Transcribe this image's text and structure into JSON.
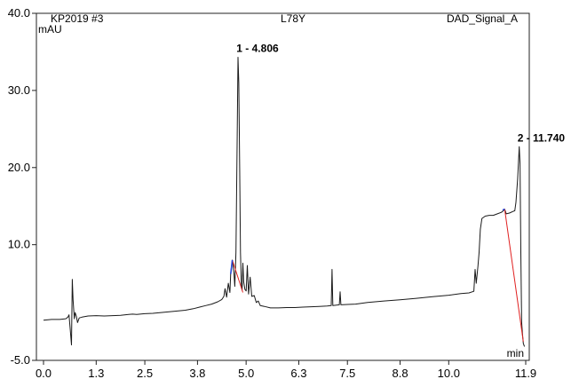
{
  "chart_data": {
    "type": "line",
    "header": {
      "left": "KP2019 #3",
      "center": "L78Y",
      "right": "DAD_Signal_A"
    },
    "ylabel": "mAU",
    "xlabel": "min",
    "xlim": [
      0.0,
      11.9
    ],
    "ylim": [
      -5.0,
      40.0
    ],
    "x_ticks": [
      "0.0",
      "1.3",
      "2.5",
      "3.8",
      "5.0",
      "6.3",
      "7.5",
      "8.8",
      "10.0",
      "11.9"
    ],
    "y_ticks": [
      "-5.0",
      "10.0",
      "20.0",
      "30.0",
      "40.0"
    ],
    "grid": false,
    "colors": {
      "trace": "#1a1a1a",
      "baseline": "#e02020",
      "peak_marker": "#1c3fd8"
    },
    "peak_labels": [
      {
        "text": "1 - 4.806",
        "x": 4.806,
        "y": 34.3
      },
      {
        "text": "2 - 11.740",
        "x": 11.74,
        "y": 22.7
      }
    ],
    "series": [
      {
        "points": [
          [
            0.0,
            0.2
          ],
          [
            0.2,
            0.3
          ],
          [
            0.4,
            0.3
          ],
          [
            0.55,
            0.4
          ],
          [
            0.6,
            0.6
          ],
          [
            0.63,
            0.9
          ],
          [
            0.66,
            -1.0
          ],
          [
            0.69,
            -3.0
          ],
          [
            0.71,
            5.5
          ],
          [
            0.73,
            2.8
          ],
          [
            0.76,
            0.4
          ],
          [
            0.78,
            1.2
          ],
          [
            0.81,
            0.7
          ],
          [
            0.84,
            -0.1
          ],
          [
            0.88,
            0.5
          ],
          [
            0.95,
            0.6
          ],
          [
            1.1,
            0.75
          ],
          [
            1.3,
            0.8
          ],
          [
            1.5,
            0.75
          ],
          [
            1.7,
            0.8
          ],
          [
            1.9,
            0.85
          ],
          [
            2.1,
            0.95
          ],
          [
            2.2,
            1.0
          ],
          [
            2.3,
            0.95
          ],
          [
            2.5,
            1.05
          ],
          [
            2.7,
            1.1
          ],
          [
            2.9,
            1.2
          ],
          [
            3.1,
            1.3
          ],
          [
            3.3,
            1.4
          ],
          [
            3.5,
            1.5
          ],
          [
            3.7,
            1.7
          ],
          [
            3.85,
            1.9
          ],
          [
            4.0,
            2.1
          ],
          [
            4.15,
            2.3
          ],
          [
            4.3,
            2.6
          ],
          [
            4.4,
            2.9
          ],
          [
            4.45,
            3.3
          ],
          [
            4.48,
            4.3
          ],
          [
            4.52,
            3.2
          ],
          [
            4.56,
            5.0
          ],
          [
            4.6,
            3.8
          ],
          [
            4.62,
            6.3
          ],
          [
            4.66,
            8.0
          ],
          [
            4.7,
            6.2
          ],
          [
            4.72,
            4.6
          ],
          [
            4.75,
            9.0
          ],
          [
            4.78,
            24.0
          ],
          [
            4.8,
            34.3
          ],
          [
            4.82,
            31.0
          ],
          [
            4.84,
            20.0
          ],
          [
            4.86,
            9.0
          ],
          [
            4.88,
            5.0
          ],
          [
            4.9,
            4.1
          ],
          [
            4.92,
            7.6
          ],
          [
            4.94,
            5.2
          ],
          [
            4.97,
            4.2
          ],
          [
            5.0,
            4.0
          ],
          [
            5.03,
            7.3
          ],
          [
            5.06,
            3.6
          ],
          [
            5.1,
            5.8
          ],
          [
            5.14,
            3.3
          ],
          [
            5.2,
            3.4
          ],
          [
            5.25,
            2.5
          ],
          [
            5.3,
            2.7
          ],
          [
            5.35,
            2.1
          ],
          [
            5.45,
            2.0
          ],
          [
            5.6,
            1.8
          ],
          [
            5.8,
            1.8
          ],
          [
            6.0,
            1.85
          ],
          [
            6.2,
            1.85
          ],
          [
            6.4,
            1.9
          ],
          [
            6.6,
            1.95
          ],
          [
            6.8,
            2.0
          ],
          [
            7.0,
            2.05
          ],
          [
            7.1,
            2.1
          ],
          [
            7.12,
            6.8
          ],
          [
            7.14,
            2.1
          ],
          [
            7.3,
            2.2
          ],
          [
            7.32,
            3.9
          ],
          [
            7.34,
            2.2
          ],
          [
            7.5,
            2.25
          ],
          [
            7.7,
            2.3
          ],
          [
            8.0,
            2.5
          ],
          [
            8.4,
            2.7
          ],
          [
            8.8,
            2.85
          ],
          [
            9.2,
            3.05
          ],
          [
            9.6,
            3.25
          ],
          [
            10.0,
            3.45
          ],
          [
            10.3,
            3.65
          ],
          [
            10.5,
            3.75
          ],
          [
            10.62,
            3.95
          ],
          [
            10.65,
            6.8
          ],
          [
            10.68,
            5.0
          ],
          [
            10.72,
            7.2
          ],
          [
            10.75,
            9.0
          ],
          [
            10.78,
            12.0
          ],
          [
            10.82,
            13.4
          ],
          [
            10.9,
            13.7
          ],
          [
            11.0,
            13.8
          ],
          [
            11.1,
            13.8
          ],
          [
            11.2,
            14.0
          ],
          [
            11.3,
            14.2
          ],
          [
            11.35,
            14.4
          ],
          [
            11.38,
            14.6
          ],
          [
            11.42,
            14.0
          ],
          [
            11.5,
            14.1
          ],
          [
            11.58,
            14.3
          ],
          [
            11.63,
            14.4
          ],
          [
            11.66,
            15.5
          ],
          [
            11.7,
            18.5
          ],
          [
            11.74,
            22.7
          ],
          [
            11.76,
            20.5
          ],
          [
            11.78,
            9.0
          ],
          [
            11.8,
            0.0
          ],
          [
            11.82,
            -1.5
          ],
          [
            11.84,
            -2.8
          ],
          [
            11.87,
            -3.2
          ]
        ]
      }
    ],
    "baselines": [
      {
        "points": [
          [
            4.66,
            8.0
          ],
          [
            4.92,
            3.8
          ]
        ]
      },
      {
        "points": [
          [
            11.38,
            14.6
          ],
          [
            11.84,
            -2.6
          ]
        ]
      }
    ],
    "peak_markers": [
      {
        "points": [
          [
            4.62,
            6.2
          ],
          [
            4.66,
            8.0
          ]
        ]
      },
      {
        "points": [
          [
            11.33,
            14.5
          ],
          [
            11.38,
            14.6
          ]
        ]
      }
    ]
  }
}
